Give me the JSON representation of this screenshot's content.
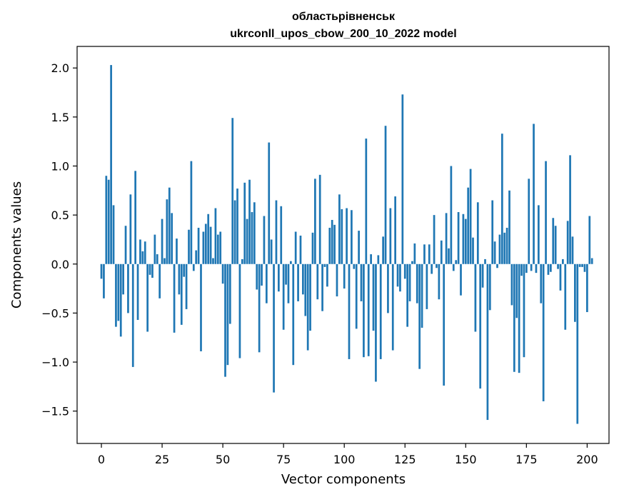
{
  "chart_data": {
    "type": "bar",
    "title_line1": "областьрівненськ",
    "title_line2": "ukrconll_upos_cbow_200_10_2022 model",
    "xlabel": "Vector components",
    "ylabel": "Components values",
    "xlim": [
      -10,
      209
    ],
    "ylim": [
      -1.83,
      2.22
    ],
    "xticks": [
      0,
      25,
      50,
      75,
      100,
      125,
      150,
      175,
      200
    ],
    "yticks": [
      -1.5,
      -1.0,
      -0.5,
      0.0,
      0.5,
      1.0,
      1.5,
      2.0
    ],
    "ytick_labels": [
      "−1.5",
      "−1.0",
      "−0.5",
      "0.0",
      "0.5",
      "1.0",
      "1.5",
      "2.0"
    ],
    "bar_color": "#1f77b4",
    "grid": false,
    "values": [
      -0.15,
      -0.35,
      0.9,
      0.86,
      2.03,
      0.6,
      -0.64,
      -0.58,
      -0.74,
      -0.31,
      0.39,
      -0.5,
      0.71,
      -1.05,
      0.95,
      -0.57,
      0.25,
      0.13,
      0.23,
      -0.69,
      -0.11,
      -0.14,
      0.3,
      0.1,
      -0.35,
      0.46,
      0.06,
      0.66,
      0.78,
      0.52,
      -0.7,
      0.26,
      -0.31,
      -0.62,
      -0.13,
      -0.46,
      0.35,
      1.05,
      -0.07,
      0.14,
      0.37,
      -0.89,
      0.33,
      0.41,
      0.51,
      0.38,
      0.06,
      0.57,
      0.3,
      0.33,
      -0.2,
      -1.15,
      -1.03,
      -0.61,
      1.49,
      0.65,
      0.77,
      -0.96,
      0.05,
      0.83,
      0.46,
      0.86,
      0.53,
      0.63,
      -0.26,
      -0.9,
      -0.22,
      0.49,
      -0.4,
      1.24,
      0.25,
      -1.31,
      0.65,
      -0.28,
      0.59,
      -0.67,
      -0.21,
      -0.4,
      0.03,
      -1.03,
      0.33,
      -0.38,
      0.29,
      -0.31,
      -0.53,
      -0.88,
      -0.68,
      0.32,
      0.87,
      -0.36,
      0.91,
      -0.48,
      -0.03,
      -0.23,
      0.37,
      0.45,
      0.4,
      -0.33,
      0.71,
      0.56,
      -0.25,
      0.57,
      -0.97,
      0.55,
      -0.05,
      -0.66,
      0.34,
      -0.38,
      -0.95,
      1.28,
      -0.94,
      0.1,
      -0.68,
      -1.2,
      0.09,
      -0.97,
      0.28,
      1.41,
      -0.5,
      0.57,
      -0.88,
      0.69,
      -0.23,
      -0.28,
      1.73,
      -0.15,
      -0.64,
      -0.38,
      0.03,
      0.21,
      -0.4,
      -1.07,
      -0.65,
      0.2,
      -0.46,
      0.2,
      -0.1,
      0.5,
      -0.04,
      -0.36,
      0.24,
      -1.24,
      0.52,
      0.16,
      1.0,
      -0.07,
      0.04,
      0.53,
      -0.32,
      0.51,
      0.46,
      0.78,
      0.97,
      0.27,
      -0.69,
      0.63,
      -1.27,
      -0.24,
      0.05,
      -1.59,
      -0.47,
      0.65,
      0.23,
      -0.04,
      0.3,
      1.33,
      0.32,
      0.37,
      0.75,
      -0.42,
      -1.1,
      -0.55,
      -1.11,
      -0.12,
      -0.95,
      -0.09,
      0.87,
      -0.07,
      1.43,
      -0.09,
      0.6,
      -0.4,
      -1.4,
      1.05,
      -0.11,
      -0.08,
      0.47,
      0.39,
      -0.05,
      -0.27,
      0.05,
      -0.67,
      0.44,
      1.11,
      0.28,
      -0.59,
      -1.63,
      -0.03,
      -0.03,
      -0.08,
      -0.49,
      0.49,
      0.06
    ]
  }
}
